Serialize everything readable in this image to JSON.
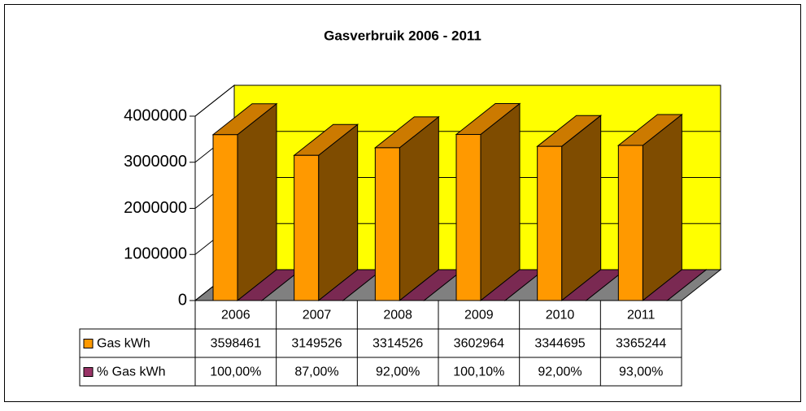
{
  "chart_data": {
    "type": "bar3d",
    "title": "Gasverbruik 2006 - 2011",
    "categories": [
      "2006",
      "2007",
      "2008",
      "2009",
      "2010",
      "2011"
    ],
    "series": [
      {
        "name": "Gas kWh",
        "color": "#ff9900",
        "values": [
          3598461,
          3149526,
          3314526,
          3602964,
          3344695,
          3365244
        ]
      },
      {
        "name": "% Gas kWh",
        "color": "#993366",
        "values": [
          100,
          87,
          92,
          100.1,
          92,
          93
        ],
        "value_labels": [
          "100,00%",
          "87,00%",
          "92,00%",
          "100,10%",
          "92,00%",
          "93,00%"
        ]
      }
    ],
    "ylim": [
      0,
      4000000
    ],
    "yticks": [
      0,
      1000000,
      2000000,
      3000000,
      4000000
    ],
    "grid": true,
    "wall_color": "#ffff00",
    "floor_color": "#808080",
    "data_table": true
  }
}
